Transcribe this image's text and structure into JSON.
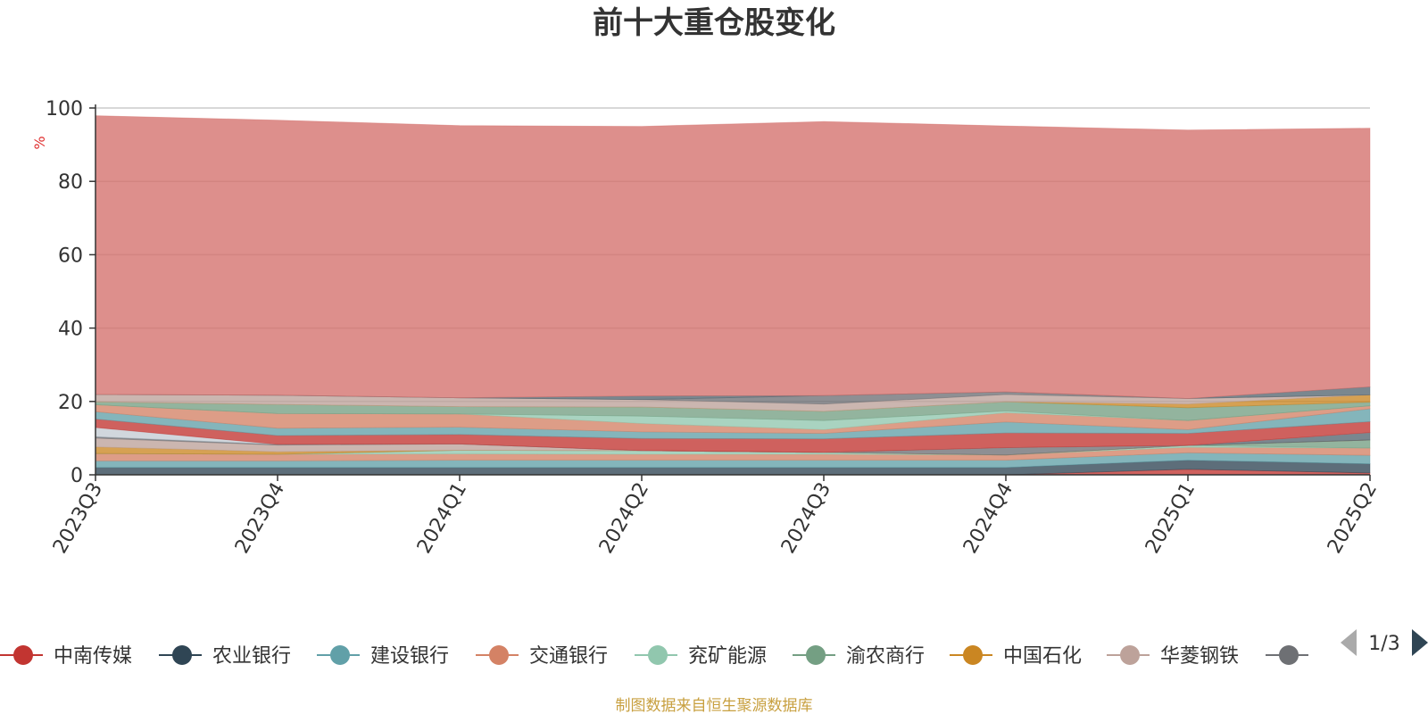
{
  "chart_data": {
    "type": "area",
    "stacked": true,
    "title": "前十大重仓股变化",
    "ylabel": "%",
    "ylim": [
      0,
      100
    ],
    "yticks": [
      0,
      20,
      40,
      60,
      80,
      100
    ],
    "grid": true,
    "categories": [
      "2023Q3",
      "2023Q4",
      "2024Q1",
      "2024Q2",
      "2024Q3",
      "2024Q4",
      "2025Q1",
      "2025Q2"
    ],
    "series": [
      {
        "name": "中南传媒",
        "color": "#c23531",
        "values": [
          0,
          0,
          0,
          0,
          0,
          0,
          1.5,
          0.5
        ]
      },
      {
        "name": "农业银行",
        "color": "#2f4554",
        "values": [
          2.0,
          2.0,
          2.0,
          2.0,
          2.0,
          2.0,
          2.5,
          2.5
        ]
      },
      {
        "name": "建设银行",
        "color": "#61a0a8",
        "values": [
          1.8,
          1.8,
          2.0,
          2.0,
          2.0,
          2.0,
          2.0,
          2.3
        ]
      },
      {
        "name": "交通银行",
        "color": "#d48265",
        "values": [
          2.0,
          1.8,
          1.7,
          1.6,
          1.6,
          1.4,
          1.5,
          2.0
        ]
      },
      {
        "name": "兖矿能源",
        "color": "#91c7ae",
        "values": [
          0,
          0,
          1.0,
          1.0,
          0.5,
          0,
          0.5,
          0
        ]
      },
      {
        "name": "渝农商行",
        "color": "#749f83",
        "values": [
          0,
          0,
          0,
          0,
          0,
          0,
          0,
          2.2
        ]
      },
      {
        "name": "中国石化",
        "color": "#ca8622",
        "values": [
          1.8,
          0.7,
          0,
          0,
          0,
          0,
          0,
          0
        ]
      },
      {
        "name": "华菱钢铁",
        "color": "#bda29a",
        "values": [
          2.4,
          1.8,
          1.7,
          0,
          0,
          0,
          0,
          0
        ]
      },
      {
        "name": "",
        "color": "#6e7074",
        "values": [
          0.4,
          0.2,
          0,
          0,
          0,
          2.0,
          0,
          0
        ]
      },
      {
        "name": "",
        "color": "#546570",
        "values": [
          0,
          0,
          0,
          0,
          0,
          0,
          0,
          2.0
        ]
      },
      {
        "name": "",
        "color": "#c4ccd3",
        "values": [
          2.5,
          0,
          0,
          0,
          0,
          0,
          0,
          0
        ]
      },
      {
        "name": "",
        "color": "#c23531",
        "values": [
          2.3,
          2.4,
          2.6,
          3.3,
          3.7,
          4.0,
          3.3,
          3.0
        ]
      },
      {
        "name": "",
        "color": "#61a0a8",
        "values": [
          2.0,
          2.0,
          2.0,
          1.8,
          1.5,
          3.0,
          1.0,
          3.5
        ]
      },
      {
        "name": "",
        "color": "#d48265",
        "values": [
          1.9,
          4.0,
          3.6,
          2.3,
          1.0,
          2.5,
          2.5,
          0.8
        ]
      },
      {
        "name": "",
        "color": "#91c7ae",
        "values": [
          0,
          0,
          0,
          2.0,
          2.5,
          0.5,
          0,
          0
        ]
      },
      {
        "name": "",
        "color": "#749f83",
        "values": [
          0.8,
          2.5,
          2.0,
          2.5,
          2.5,
          2.5,
          3.5,
          1.0
        ]
      },
      {
        "name": "",
        "color": "#ca8622",
        "values": [
          0,
          0,
          0,
          0,
          0,
          0,
          1.0,
          2.0
        ]
      },
      {
        "name": "",
        "color": "#bda29a",
        "values": [
          2.0,
          2.5,
          2.4,
          2.0,
          2.0,
          2.0,
          1.5,
          0
        ]
      },
      {
        "name": "",
        "color": "#6e7074",
        "values": [
          0,
          0,
          0,
          0,
          2.3,
          0.7,
          0,
          0
        ]
      },
      {
        "name": "",
        "color": "#546570",
        "values": [
          0,
          0,
          0,
          1.0,
          0,
          0,
          0,
          2.2
        ]
      },
      {
        "name": "",
        "color": "#d3706b",
        "values": [
          76.0,
          75.0,
          74.2,
          73.5,
          74.7,
          72.5,
          73.2,
          70.5
        ]
      }
    ]
  },
  "legend": {
    "visible_items": [
      {
        "name": "中南传媒",
        "color": "#c23531"
      },
      {
        "name": "农业银行",
        "color": "#2f4554"
      },
      {
        "name": "建设银行",
        "color": "#61a0a8"
      },
      {
        "name": "交通银行",
        "color": "#d48265"
      },
      {
        "name": "兖矿能源",
        "color": "#91c7ae"
      },
      {
        "name": "渝农商行",
        "color": "#749f83"
      },
      {
        "name": "中国石化",
        "color": "#ca8622"
      },
      {
        "name": "华菱钢铁",
        "color": "#bda29a"
      },
      {
        "name": "",
        "color": "#6e7074"
      }
    ],
    "page_indicator": "1/3"
  },
  "source_note": "制图数据来自恒生聚源数据库"
}
